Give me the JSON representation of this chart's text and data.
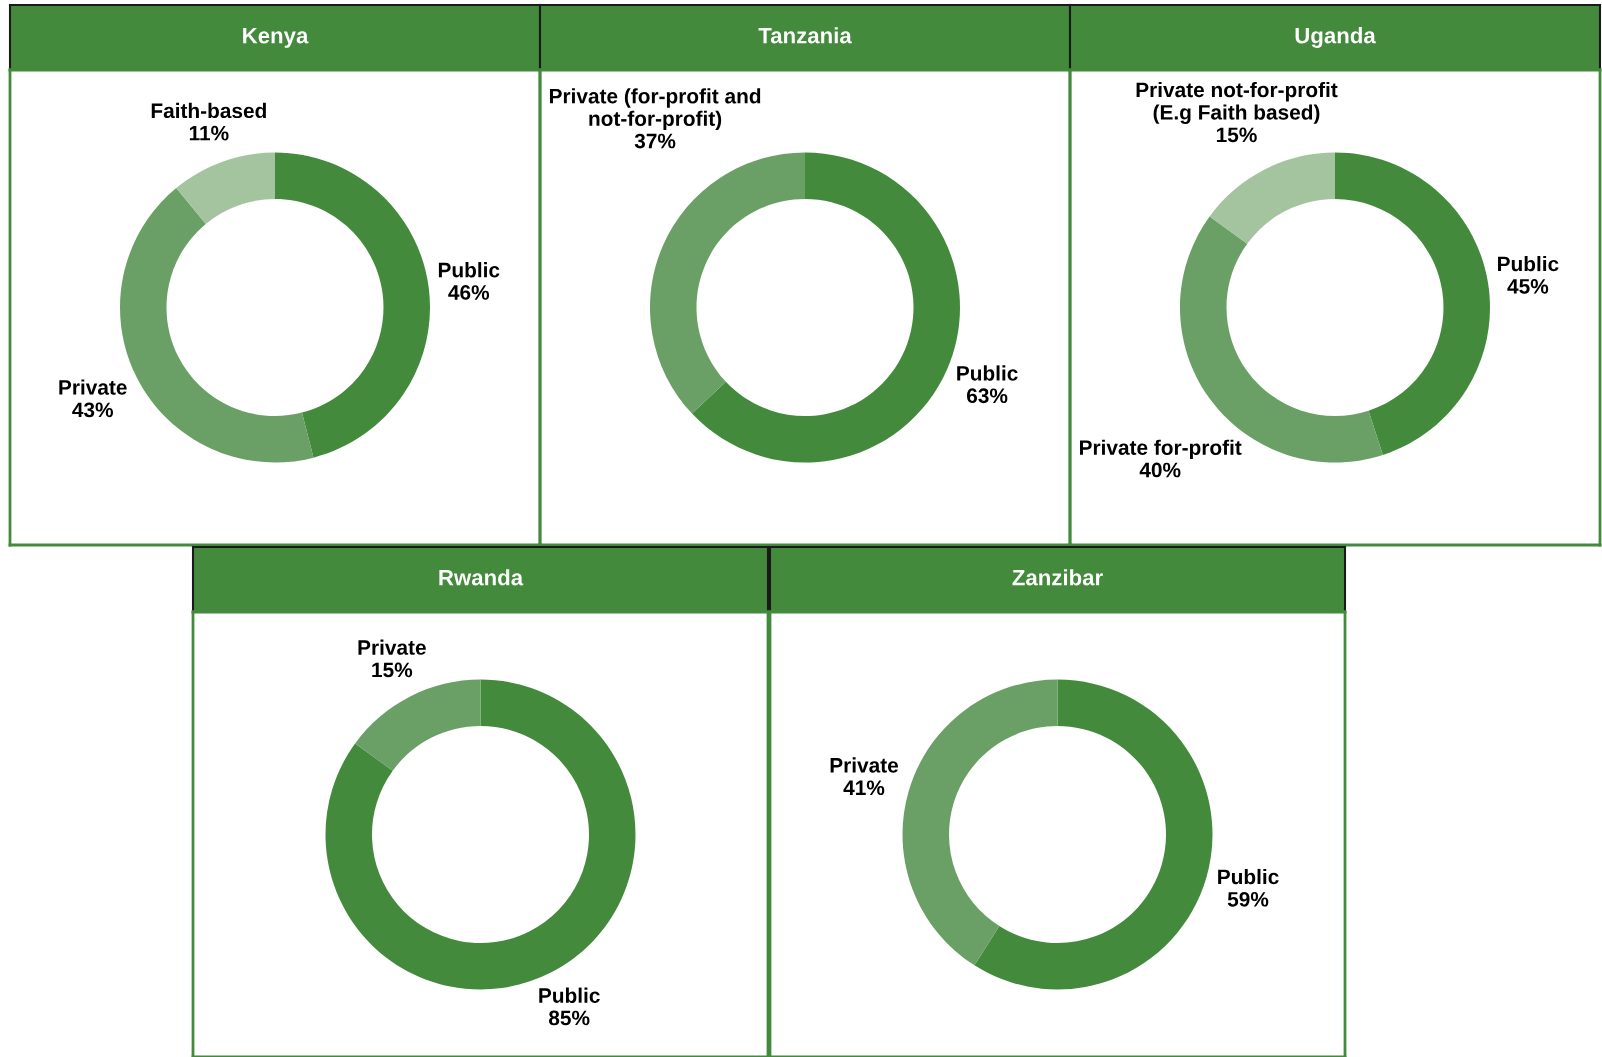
{
  "chart_data": [
    {
      "type": "donut",
      "title": "Kenya",
      "categories": [
        "Public",
        "Private",
        "Faith-based"
      ],
      "values": [
        46,
        43,
        11
      ],
      "value_labels": [
        "46%",
        "43%",
        "11%"
      ],
      "colors": [
        "#438a3c",
        "#6aa066",
        "#a3c49e"
      ]
    },
    {
      "type": "donut",
      "title": "Tanzania",
      "categories": [
        "Public",
        "Private (for-profit and\nnot-for-profit)"
      ],
      "values": [
        63,
        37
      ],
      "value_labels": [
        "63%",
        "37%"
      ],
      "colors": [
        "#438a3c",
        "#6aa066"
      ]
    },
    {
      "type": "donut",
      "title": "Uganda",
      "categories": [
        "Public",
        "Private for-profit",
        "Private not-for-profit\n(E.g Faith based)"
      ],
      "values": [
        45,
        40,
        15
      ],
      "value_labels": [
        "45%",
        "40%",
        "15%"
      ],
      "colors": [
        "#438a3c",
        "#6aa066",
        "#a3c49e"
      ]
    },
    {
      "type": "donut",
      "title": "Rwanda",
      "categories": [
        "Public",
        "Private"
      ],
      "values": [
        85,
        15
      ],
      "value_labels": [
        "85%",
        "15%"
      ],
      "colors": [
        "#438a3c",
        "#6aa066"
      ]
    },
    {
      "type": "donut",
      "title": "Zanzibar",
      "categories": [
        "Public",
        "Private"
      ],
      "values": [
        59,
        41
      ],
      "value_labels": [
        "59%",
        "41%"
      ],
      "colors": [
        "#438a3c",
        "#6aa066"
      ]
    }
  ]
}
